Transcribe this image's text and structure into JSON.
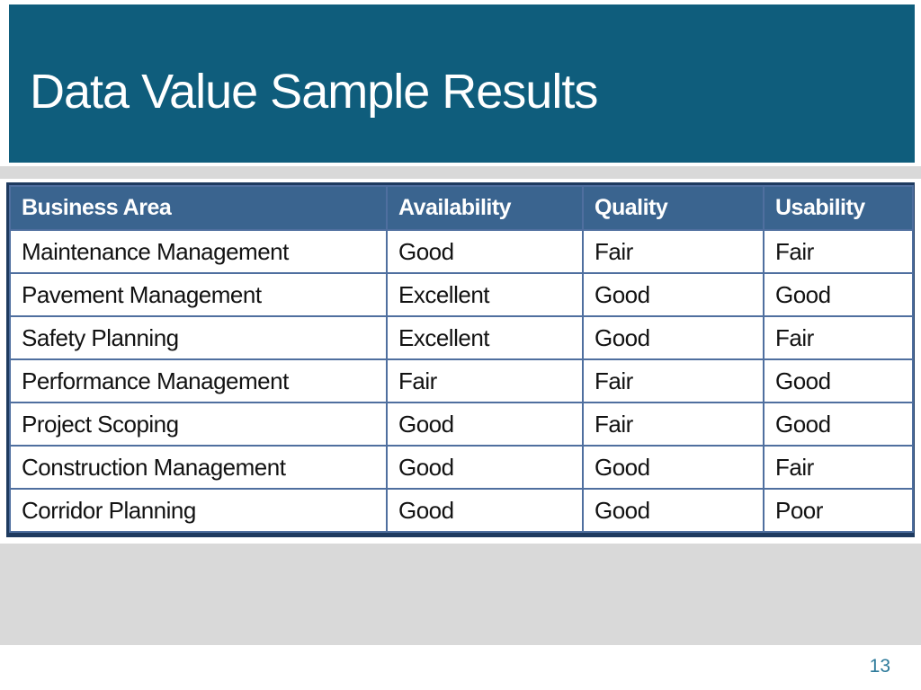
{
  "slide": {
    "title": "Data Value Sample Results",
    "page_number": "13"
  },
  "table": {
    "columns": [
      "Business Area",
      "Availability",
      "Quality",
      "Usability"
    ],
    "rows": [
      {
        "area": "Maintenance Management",
        "ratings": [
          {
            "label": "Good",
            "level": "good"
          },
          {
            "label": "Fair",
            "level": "fair"
          },
          {
            "label": "Fair",
            "level": "fair"
          }
        ]
      },
      {
        "area": "Pavement Management",
        "ratings": [
          {
            "label": "Excellent",
            "level": "excellent"
          },
          {
            "label": "Good",
            "level": "good"
          },
          {
            "label": "Good",
            "level": "good"
          }
        ]
      },
      {
        "area": "Safety Planning",
        "ratings": [
          {
            "label": "Excellent",
            "level": "excellent"
          },
          {
            "label": "Good",
            "level": "good"
          },
          {
            "label": "Fair",
            "level": "fair"
          }
        ]
      },
      {
        "area": "Performance Management",
        "ratings": [
          {
            "label": "Fair",
            "level": "fair"
          },
          {
            "label": "Fair",
            "level": "fair"
          },
          {
            "label": "Good",
            "level": "good"
          }
        ]
      },
      {
        "area": "Project Scoping",
        "ratings": [
          {
            "label": "Good",
            "level": "good"
          },
          {
            "label": "Fair",
            "level": "fair"
          },
          {
            "label": "Good",
            "level": "good"
          }
        ]
      },
      {
        "area": "Construction Management",
        "ratings": [
          {
            "label": "Good",
            "level": "good"
          },
          {
            "label": "Good",
            "level": "good"
          },
          {
            "label": "Fair",
            "level": "fair_alt"
          }
        ]
      },
      {
        "area": "Corridor Planning",
        "ratings": [
          {
            "label": "Good",
            "level": "good"
          },
          {
            "label": "Good",
            "level": "good"
          },
          {
            "label": "Poor",
            "level": "poor"
          }
        ]
      }
    ]
  },
  "colors": {
    "header_teal": "#0f5d7c",
    "table_header_blue": "#3a648f",
    "band_gray": "#d9d9d9",
    "good": "#9cdbc5",
    "excellent": "#17a94f",
    "fair": "#f5a466",
    "fair_alt": "#8ba4d0",
    "poor": "#e88b8f",
    "inner_border": "#4f6f9f",
    "outer_border": "#1e3a5f",
    "page_number": "#2e7b9b"
  }
}
